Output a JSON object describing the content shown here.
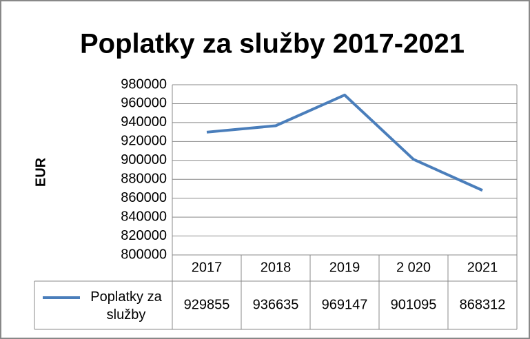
{
  "chart_data": {
    "type": "line",
    "title": "Poplatky za služby 2017-2021",
    "y_label": "EUR",
    "categories": [
      "2017",
      "2018",
      "2019",
      "2 020",
      "2021"
    ],
    "series": [
      {
        "name": "Poplatky za služby",
        "color": "#4a7ebb",
        "values": [
          929855,
          936635,
          969147,
          901095,
          868312
        ]
      }
    ],
    "ylim": [
      800000,
      980000
    ],
    "yticks": [
      800000,
      820000,
      840000,
      860000,
      880000,
      900000,
      920000,
      940000,
      960000,
      980000
    ],
    "grid": true
  }
}
